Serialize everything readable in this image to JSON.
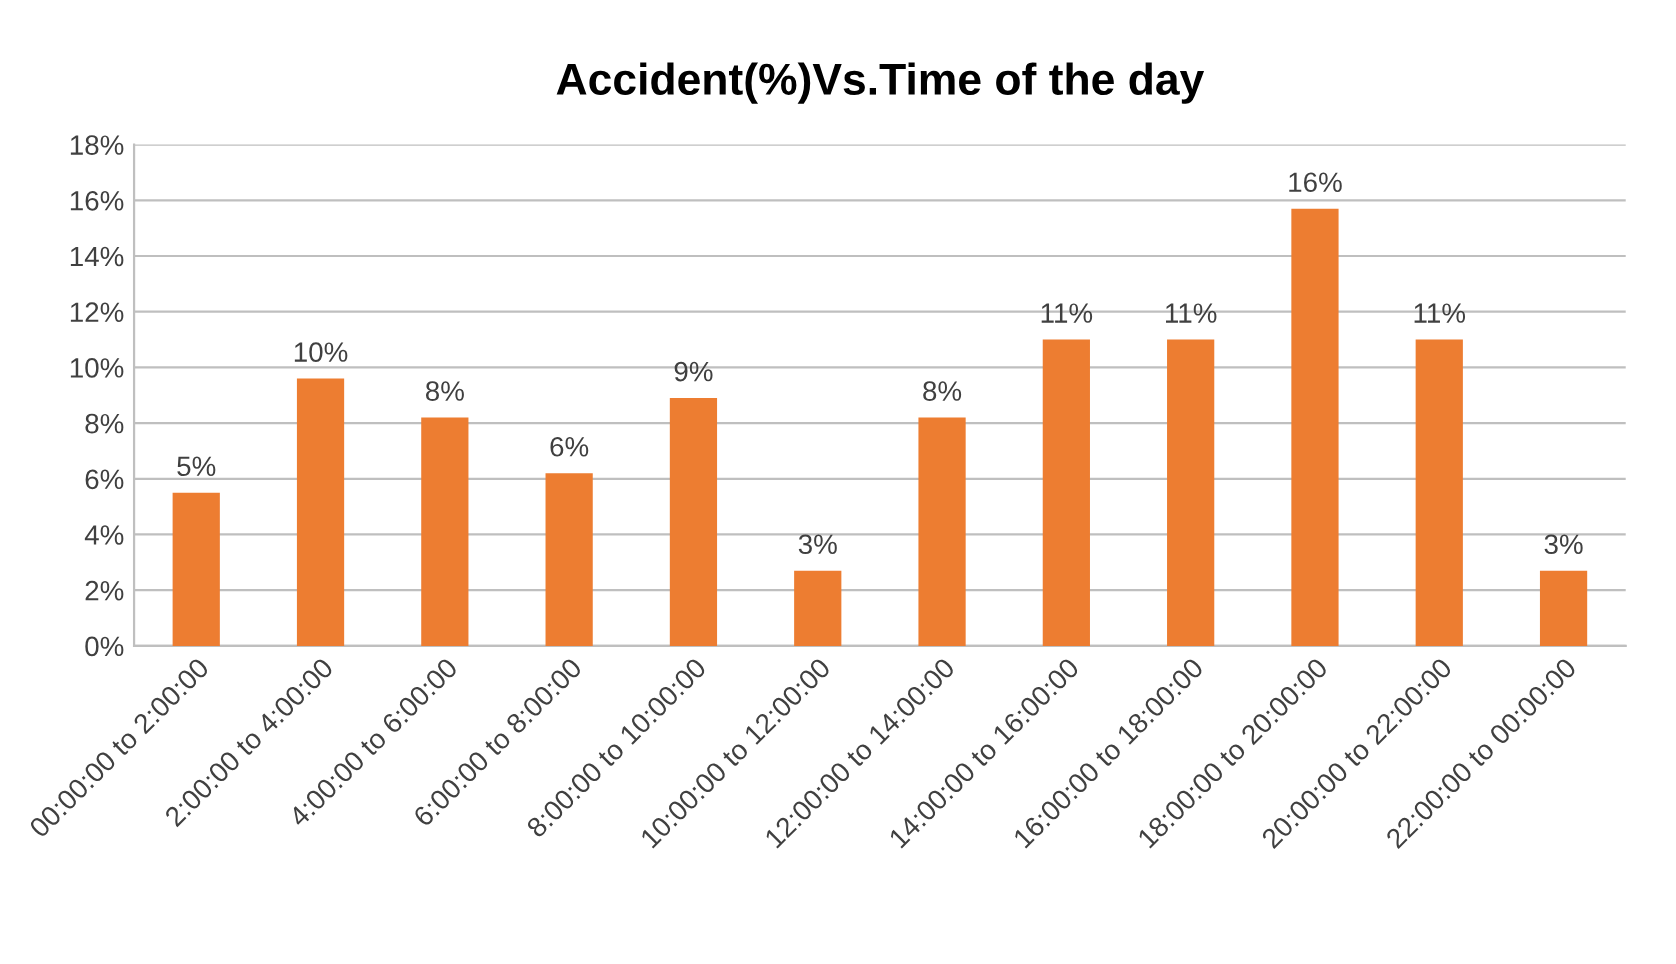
{
  "chart_data": {
    "type": "bar",
    "title": "Accident(%)Vs.Time of the day",
    "categories": [
      "00:00:00 to 2:00:00",
      "2:00:00 to 4:00:00",
      "4:00:00 to 6:00:00",
      "6:00:00 to 8:00:00",
      "8:00:00 to 10:00:00",
      "10:00:00 to 12:00:00",
      "12:00:00 to 14:00:00",
      "14:00:00 to 16:00:00",
      "16:00:00 to 18:00:00",
      "18:00:00 to 20:00:00",
      "20:00:00 to 22:00:00",
      "22:00:00 to 00:00:00"
    ],
    "values": [
      5.5,
      9.6,
      8.2,
      6.2,
      8.9,
      2.7,
      8.2,
      11.0,
      11.0,
      15.7,
      11.0,
      2.7
    ],
    "value_labels": [
      "5%",
      "10%",
      "8%",
      "6%",
      "9%",
      "3%",
      "8%",
      "11%",
      "11%",
      "16%",
      "11%",
      "3%"
    ],
    "color": "#ed7d31",
    "ylim": [
      0,
      18
    ],
    "yticks": [
      {
        "value": 0,
        "label": "0%"
      },
      {
        "value": 2,
        "label": "2%"
      },
      {
        "value": 4,
        "label": "4%"
      },
      {
        "value": 6,
        "label": "6%"
      },
      {
        "value": 8,
        "label": "8%"
      },
      {
        "value": 10,
        "label": "10%"
      },
      {
        "value": 12,
        "label": "12%"
      },
      {
        "value": 14,
        "label": "14%"
      },
      {
        "value": 16,
        "label": "16%"
      },
      {
        "value": 18,
        "label": "18%"
      }
    ],
    "grid": "y"
  }
}
